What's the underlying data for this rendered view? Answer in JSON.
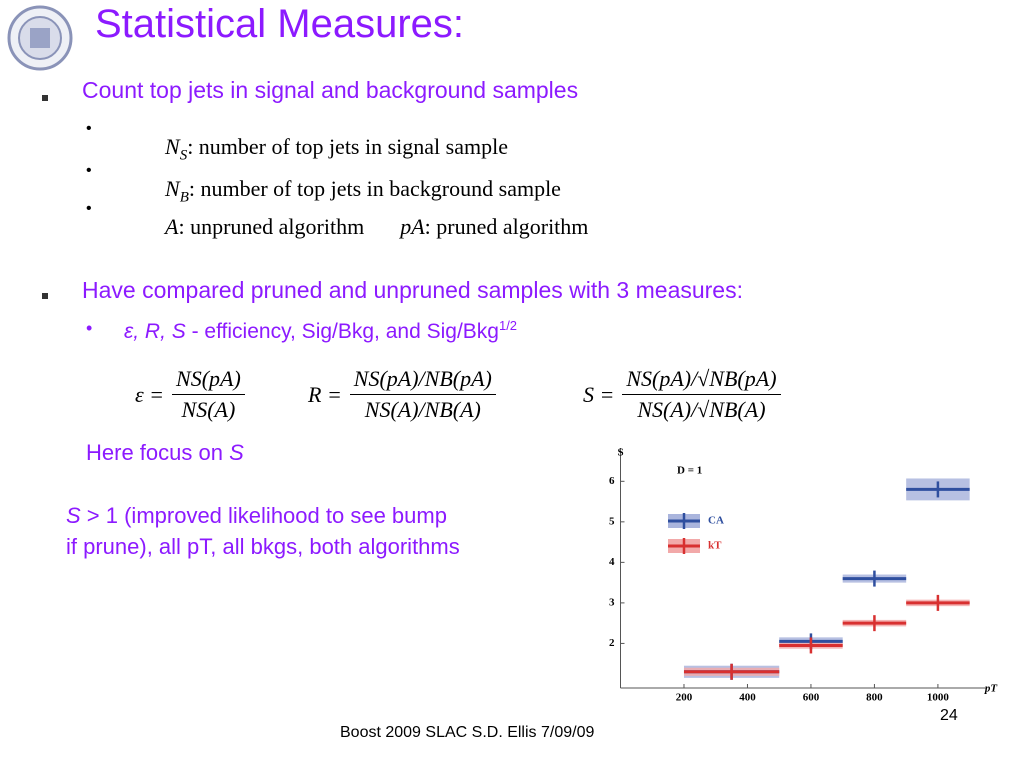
{
  "header": {
    "title": "Statistical Measures:"
  },
  "bullet1": {
    "text": "Count top jets in signal and background samples",
    "definitions": [
      [
        {
          "base": "N",
          "sub": "S",
          "desc": ":  number of top jets in signal sample"
        }
      ],
      [
        {
          "base": "N",
          "sub": "B",
          "desc": ":  number of top jets in background sample"
        }
      ],
      [
        {
          "base": "A",
          "desc": ":  unpruned algorithm"
        },
        {
          "base": "pA",
          "desc": ":  pruned algorithm"
        }
      ]
    ]
  },
  "bullet2": {
    "text": "Have compared pruned and unpruned samples with 3 measures:",
    "sub_symbols": "ε, R, S",
    "sub_text": " - efficiency, Sig/Bkg, and Sig/Bkg",
    "sub_sup": "1/2"
  },
  "equations": [
    {
      "lhs": "ε =",
      "numerator": "NS(pA)",
      "denominator": "NS(A)"
    },
    {
      "lhs": "R =",
      "numerator": "NS(pA)/NB(pA)",
      "denominator": "NS(A)/NB(A)"
    },
    {
      "lhs": "S =",
      "numerator": "NS(pA)/√NB(pA)",
      "denominator": "NS(A)/√NB(A)"
    }
  ],
  "focus": {
    "text": "Here focus on ",
    "symbol": "S"
  },
  "note": {
    "symbol": "S",
    "line1": " > 1 (improved likelihood to see bump",
    "line2": "if prune), all pT, all bkgs, both algorithms"
  },
  "footer": {
    "text": "Boost 2009  SLAC     S.D. Ellis    7/09/09",
    "page": "24"
  },
  "chart_data": {
    "type": "binned-band",
    "y_label": "S",
    "x_label": "pT",
    "annotation": "D = 1",
    "legend": "upper left",
    "xlim": [
      0,
      1120
    ],
    "ylim": [
      0.9,
      6.6
    ],
    "xticks": [
      200,
      400,
      600,
      800,
      1000
    ],
    "yticks": [
      2,
      3,
      4,
      5,
      6
    ],
    "series": [
      {
        "name": "CA",
        "color": "#2f4f9f",
        "band_color": "#aab5dd",
        "bins": [
          200,
          500,
          700,
          900,
          1100
        ],
        "values": [
          1.3,
          2.05,
          3.6,
          5.8
        ],
        "errors": [
          0.15,
          0.1,
          0.1,
          0.27
        ]
      },
      {
        "name": "kT",
        "color": "#d83030",
        "band_color": "#f2a9a9",
        "bins": [
          200,
          500,
          700,
          900,
          1100
        ],
        "values": [
          1.3,
          1.95,
          2.5,
          3.0
        ],
        "errors": [
          0.1,
          0.08,
          0.08,
          0.08
        ]
      }
    ]
  }
}
